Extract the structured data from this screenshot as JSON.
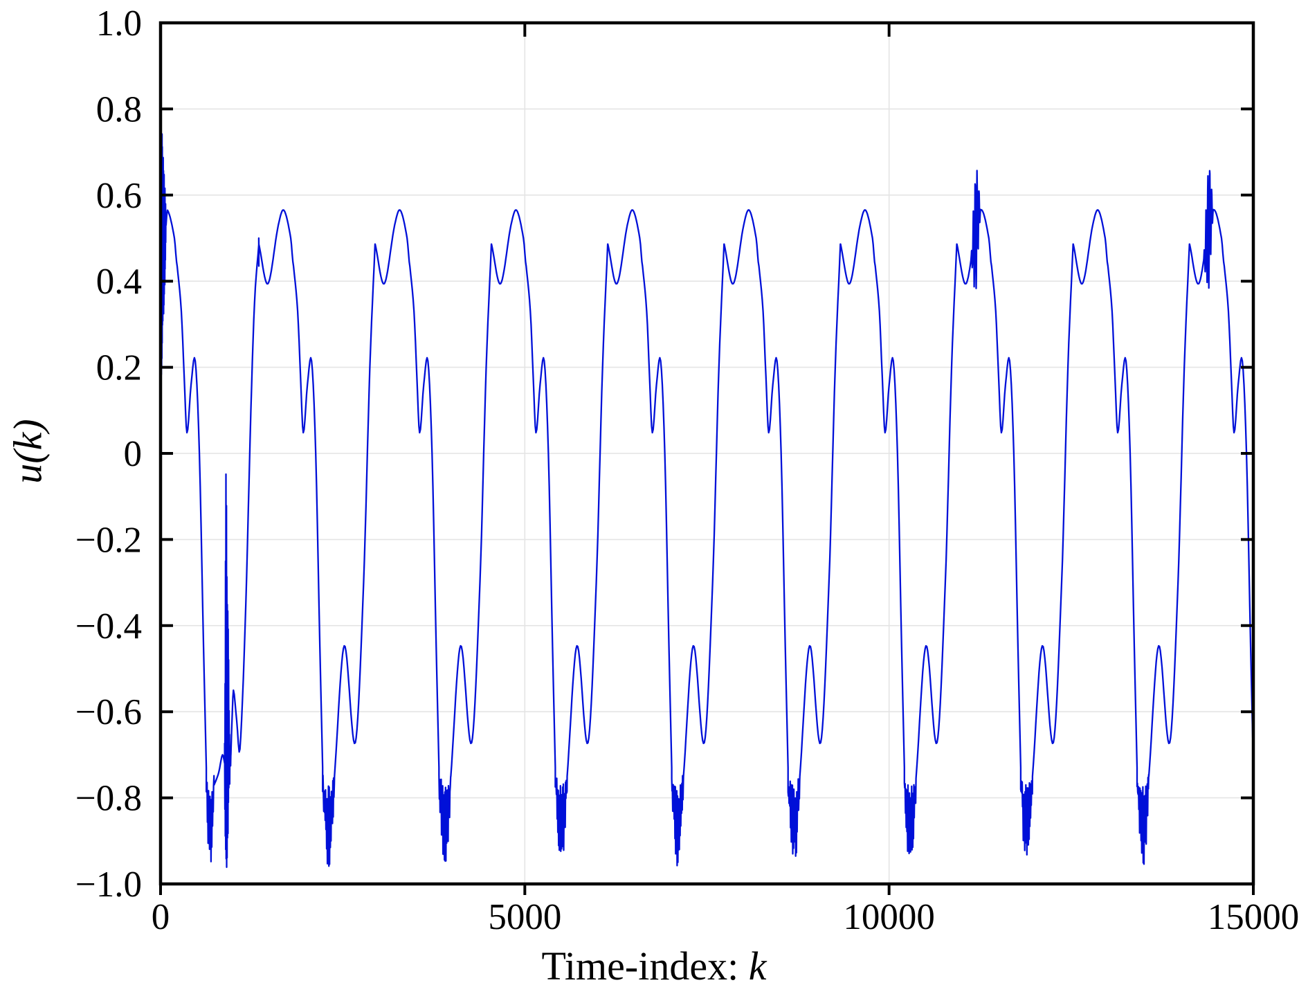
{
  "chart_data": {
    "type": "line",
    "title": "",
    "xlabel_prefix": "Time-index: ",
    "xlabel_var": "k",
    "ylabel": "u(k)",
    "xlim": [
      0,
      15000
    ],
    "ylim": [
      -1,
      1
    ],
    "grid_on": true,
    "legend": null,
    "line_color": "#0010d8",
    "grid_color": "#e4e4e4",
    "frame_color": "#000000",
    "xticks": [
      {
        "v": 0,
        "label": "0"
      },
      {
        "v": 5000,
        "label": "5000"
      },
      {
        "v": 10000,
        "label": "10000"
      },
      {
        "v": 15000,
        "label": "15000"
      }
    ],
    "yticks": [
      {
        "v": 1.0,
        "label": "1.0"
      },
      {
        "v": 0.8,
        "label": "0.8"
      },
      {
        "v": 0.6,
        "label": "0.6"
      },
      {
        "v": 0.4,
        "label": "0.4"
      },
      {
        "v": 0.2,
        "label": "0.2"
      },
      {
        "v": 0.0,
        "label": "0"
      },
      {
        "v": -0.2,
        "label": "−0.2"
      },
      {
        "v": -0.4,
        "label": "−0.4"
      },
      {
        "v": -0.6,
        "label": "−0.6"
      },
      {
        "v": -0.8,
        "label": "−0.8"
      },
      {
        "v": -1.0,
        "label": "−1.0"
      }
    ],
    "grid_x": [
      5000,
      10000
    ],
    "grid_y": [
      -0.8,
      -0.6,
      -0.4,
      -0.2,
      0,
      0.2,
      0.4,
      0.6,
      0.8
    ],
    "series": [
      {
        "name": "u(k)",
        "description": "Periodic multi-harmonic excitation signal, ~9.4 periods over 15000 samples, with a start-up transient, noisy deep minima each period, one large negative noise burst near k=900, and high-frequency bursts on the rising edge near k=11200 and k=14400.",
        "model": {
          "period": 1597,
          "first_main_peak_k": 95,
          "num_periods": 10,
          "keyframes": [
            [
              -343,
              0.486
            ],
            [
              -219,
              0.394
            ],
            [
              -76,
              0.53
            ],
            [
              0,
              0.565
            ],
            [
              95,
              0.5
            ],
            [
              124,
              0.445
            ],
            [
              133,
              0.435
            ],
            [
              190,
              0.33
            ],
            [
              229,
              0.18
            ],
            [
              267,
              0.048
            ],
            [
              324,
              0.16
            ],
            [
              381,
              0.215
            ],
            [
              438,
              0.0
            ],
            [
              495,
              -0.45
            ],
            [
              533,
              -0.73
            ],
            [
              695,
              -0.75
            ],
            [
              829,
              -0.447
            ],
            [
              981,
              -0.672
            ],
            [
              1095,
              -0.3
            ],
            [
              1181,
              0.2
            ],
            [
              1252,
              0.486
            ]
          ],
          "noisy_min": {
            "t_start": 533,
            "t_end": 695,
            "top": -0.72,
            "deep": -0.96,
            "step": 5
          },
          "start_transient": {
            "k_end": 75,
            "top_start": 0.8,
            "top_end": 0.57,
            "bottom_start": 0.12,
            "bottom_end": 0.46,
            "step": 2
          },
          "first_period": {
            "head": [
              [
                -20,
                0.53
              ],
              [
                0,
                0.565
              ],
              [
                95,
                0.5
              ],
              [
                124,
                0.445
              ],
              [
                133,
                0.435
              ],
              [
                190,
                0.33
              ],
              [
                229,
                0.18
              ],
              [
                267,
                0.048
              ],
              [
                324,
                0.16
              ],
              [
                381,
                0.215
              ],
              [
                438,
                0.0
              ],
              [
                495,
                -0.45
              ],
              [
                533,
                -0.73
              ]
            ],
            "noise_end": 640,
            "mid": [
              [
                640,
                -0.77
              ],
              [
                665,
                -0.76
              ],
              [
                705,
                -0.74
              ],
              [
                755,
                -0.7
              ],
              [
                785,
                -0.72
              ]
            ],
            "tail": [
              [
                870,
                -0.7
              ],
              [
                890,
                -0.6
              ],
              [
                905,
                -0.55
              ],
              [
                950,
                -0.62
              ],
              [
                995,
                -0.687
              ],
              [
                1075,
                -0.35
              ],
              [
                1145,
                0.1
              ],
              [
                1195,
                0.35
              ],
              [
                1254,
                0.486
              ]
            ]
          },
          "big_spike": {
            "t_start": 785,
            "t_end": 870,
            "top": -0.07,
            "bottom": -0.997
          },
          "burst": {
            "periods": [
              7,
              9
            ],
            "t_start": -150,
            "t_end": -15,
            "amp": 0.148,
            "osc": 26
          },
          "glitch_first_peak": {
            "period": 1,
            "v_high": 0.5,
            "v_low": 0.435
          }
        }
      }
    ]
  }
}
